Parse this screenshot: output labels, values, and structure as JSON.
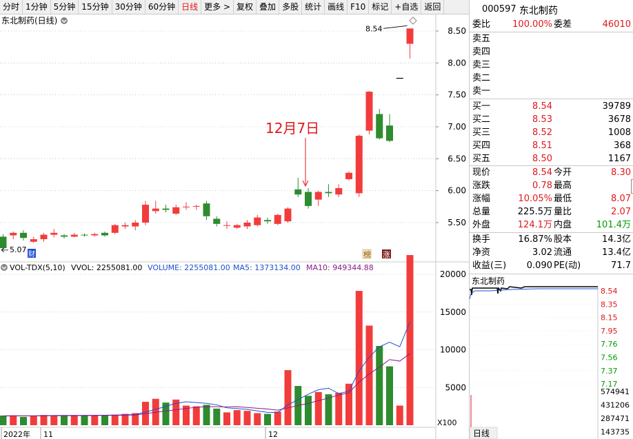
{
  "toolbar": {
    "items": [
      "分时",
      "1分钟",
      "5分钟",
      "15分钟",
      "30分钟",
      "60分钟",
      "日线",
      "更多 >",
      "复权",
      "叠加",
      "多股",
      "统计",
      "画线",
      "F10",
      "标记",
      "+自选",
      "返回"
    ],
    "active": "日线"
  },
  "chart_title": "东北制药(日线)",
  "annotation": "12月7日",
  "price_axis": [
    "8.50",
    "8.00",
    "7.50",
    "7.00",
    "6.50",
    "6.00",
    "5.50"
  ],
  "high_label": "8.54",
  "low_label": "5.07",
  "vol_legend": {
    "name": "VOL-TDX(5,10)",
    "vvol": "VVOL: 2255081.00",
    "volume": "VOLUME: 2255081.00",
    "ma5": "MA5: 1373134.00",
    "ma10": "MA10: 949344.88"
  },
  "vol_axis": [
    "20000",
    "15000",
    "10000",
    "5000"
  ],
  "vol_unit": "X100",
  "date_axis": [
    "2022年",
    "11",
    "12"
  ],
  "badges": [
    "榜",
    "涨"
  ],
  "colors": {
    "up": "#f23c3c",
    "down": "#2e8b2e",
    "ma5": "#1e4fd4",
    "ma10": "#8a1a8a",
    "accent": "#e0171b"
  },
  "quote": {
    "code": "000597",
    "name": "东北制药",
    "weibi_label": "委比",
    "weibi": "100.00%",
    "weicha_label": "委差",
    "weicha": "46010",
    "sells": [
      {
        "label": "卖五"
      },
      {
        "label": "卖四"
      },
      {
        "label": "卖三"
      },
      {
        "label": "卖二"
      },
      {
        "label": "卖一"
      }
    ],
    "buys": [
      {
        "label": "买一",
        "price": "8.54",
        "vol": "39789"
      },
      {
        "label": "买二",
        "price": "8.53",
        "vol": "3678"
      },
      {
        "label": "买三",
        "price": "8.52",
        "vol": "1008"
      },
      {
        "label": "买四",
        "price": "8.51",
        "vol": "368"
      },
      {
        "label": "买五",
        "price": "8.50",
        "vol": "1167"
      }
    ],
    "stats": [
      {
        "l1": "现价",
        "v1": "8.54",
        "l2": "今开",
        "v2": "8.30"
      },
      {
        "l1": "涨跌",
        "v1": "0.78",
        "l2": "最高",
        "v2": "8.54"
      },
      {
        "l1": "涨幅",
        "v1": "10.05%",
        "l2": "最低",
        "v2": "8.07"
      },
      {
        "l1": "总量",
        "v1": "225.5万",
        "l2": "量比",
        "v2": "2.07"
      },
      {
        "l1": "外盘",
        "v1": "124.1万",
        "l2": "内盘",
        "v2": "101.4万"
      }
    ],
    "stats2": [
      {
        "l1": "换手",
        "v1": "16.87%",
        "l2": "股本",
        "v2": "14.3亿"
      },
      {
        "l1": "净资",
        "v1": "3.02",
        "l2": "流通",
        "v2": "13.4亿"
      },
      {
        "l1": "收益(三)",
        "v1": "0.090",
        "l2": "PE(动)",
        "v2": "71.7"
      }
    ]
  },
  "mini": {
    "title": "东北制药",
    "price_ticks": [
      "8.54",
      "8.35",
      "8.15",
      "7.95",
      "7.76",
      "7.56",
      "7.37",
      "7.17"
    ],
    "vol_ticks": [
      "574941",
      "431206",
      "287471",
      "143735"
    ],
    "tab": "日线"
  },
  "chart_data": {
    "type": "candlestick",
    "title": "东北制药(日线)",
    "candles": [
      {
        "o": 5.28,
        "c": 5.1,
        "h": 5.32,
        "l": 5.07
      },
      {
        "o": 5.3,
        "c": 5.34,
        "h": 5.36,
        "l": 5.24
      },
      {
        "o": 5.34,
        "c": 5.26,
        "h": 5.38,
        "l": 5.22
      },
      {
        "o": 5.2,
        "c": 5.24,
        "h": 5.28,
        "l": 5.18
      },
      {
        "o": 5.24,
        "c": 5.31,
        "h": 5.34,
        "l": 5.2
      },
      {
        "o": 5.31,
        "c": 5.34,
        "h": 5.4,
        "l": 5.27
      },
      {
        "o": 5.3,
        "c": 5.28,
        "h": 5.32,
        "l": 5.25
      },
      {
        "o": 5.28,
        "c": 5.31,
        "h": 5.34,
        "l": 5.27
      },
      {
        "o": 5.31,
        "c": 5.3,
        "h": 5.33,
        "l": 5.28
      },
      {
        "o": 5.3,
        "c": 5.32,
        "h": 5.34,
        "l": 5.28
      },
      {
        "o": 5.34,
        "c": 5.3,
        "h": 5.36,
        "l": 5.28
      },
      {
        "o": 5.34,
        "c": 5.46,
        "h": 5.48,
        "l": 5.32
      },
      {
        "o": 5.44,
        "c": 5.46,
        "h": 5.5,
        "l": 5.4
      },
      {
        "o": 5.44,
        "c": 5.5,
        "h": 5.54,
        "l": 5.38
      },
      {
        "o": 5.5,
        "c": 5.78,
        "h": 5.84,
        "l": 5.46
      },
      {
        "o": 5.68,
        "c": 5.72,
        "h": 5.84,
        "l": 5.64
      },
      {
        "o": 5.72,
        "c": 5.7,
        "h": 5.78,
        "l": 5.66
      },
      {
        "o": 5.64,
        "c": 5.74,
        "h": 5.78,
        "l": 5.62
      },
      {
        "o": 5.74,
        "c": 5.75,
        "h": 5.82,
        "l": 5.7
      },
      {
        "o": 5.75,
        "c": 5.76,
        "h": 5.78,
        "l": 5.7
      },
      {
        "o": 5.8,
        "c": 5.6,
        "h": 5.84,
        "l": 5.54
      },
      {
        "o": 5.56,
        "c": 5.48,
        "h": 5.6,
        "l": 5.44
      },
      {
        "o": 5.46,
        "c": 5.46,
        "h": 5.52,
        "l": 5.4
      },
      {
        "o": 5.42,
        "c": 5.46,
        "h": 5.48,
        "l": 5.4
      },
      {
        "o": 5.44,
        "c": 5.5,
        "h": 5.54,
        "l": 5.4
      },
      {
        "o": 5.46,
        "c": 5.58,
        "h": 5.62,
        "l": 5.44
      },
      {
        "o": 5.54,
        "c": 5.52,
        "h": 5.58,
        "l": 5.48
      },
      {
        "o": 5.48,
        "c": 5.62,
        "h": 5.64,
        "l": 5.46
      },
      {
        "o": 5.52,
        "c": 5.72,
        "h": 5.74,
        "l": 5.5
      },
      {
        "o": 6.02,
        "c": 5.94,
        "h": 6.2,
        "l": 5.9
      },
      {
        "o": 5.98,
        "c": 5.76,
        "h": 6.04,
        "l": 5.72
      },
      {
        "o": 5.86,
        "c": 5.98,
        "h": 6.0,
        "l": 5.76
      },
      {
        "o": 5.98,
        "c": 5.96,
        "h": 6.1,
        "l": 5.9
      },
      {
        "o": 5.94,
        "c": 6.04,
        "h": 6.1,
        "l": 5.9
      },
      {
        "o": 6.18,
        "c": 6.28,
        "h": 6.3,
        "l": 6.16
      },
      {
        "o": 5.96,
        "c": 6.86,
        "h": 6.88,
        "l": 5.9
      },
      {
        "o": 6.94,
        "c": 7.55,
        "h": 7.56,
        "l": 6.88
      },
      {
        "o": 7.2,
        "c": 6.82,
        "h": 7.28,
        "l": 6.8
      },
      {
        "o": 7.02,
        "c": 6.78,
        "h": 7.2,
        "l": 6.76
      },
      {
        "o": null,
        "c": null,
        "h": 7.76,
        "l": 7.76
      },
      {
        "o": 8.3,
        "c": 8.54,
        "h": 8.54,
        "l": 8.07
      }
    ],
    "volumes": [
      1280,
      1300,
      1100,
      1200,
      1350,
      1300,
      1250,
      1350,
      1300,
      1300,
      1350,
      1400,
      1500,
      1600,
      3100,
      3500,
      3000,
      3400,
      2600,
      2500,
      2700,
      2200,
      1700,
      2000,
      1900,
      1600,
      1500,
      1800,
      7300,
      5200,
      3900,
      4400,
      4100,
      4300,
      5500,
      17800,
      13200,
      10500,
      7800,
      2600,
      22550
    ],
    "ma5": [
      1250,
      1260,
      1240,
      1250,
      1270,
      1290,
      1300,
      1290,
      1310,
      1310,
      1320,
      1350,
      1380,
      1420,
      1750,
      2100,
      2500,
      2900,
      3100,
      3000,
      2900,
      2700,
      2300,
      2200,
      2100,
      1900,
      1700,
      1700,
      2700,
      3400,
      4100,
      4700,
      4900,
      4200,
      4500,
      7200,
      9000,
      10400,
      11000,
      10400,
      13700
    ],
    "ma10": [
      1220,
      1230,
      1230,
      1240,
      1250,
      1260,
      1260,
      1270,
      1280,
      1290,
      1300,
      1310,
      1330,
      1360,
      1540,
      1710,
      1880,
      2050,
      2220,
      2380,
      2450,
      2450,
      2420,
      2450,
      2350,
      2250,
      2150,
      2000,
      2300,
      2600,
      2900,
      3250,
      3600,
      4000,
      4300,
      5700,
      6800,
      7700,
      8700,
      8500,
      9493
    ]
  }
}
